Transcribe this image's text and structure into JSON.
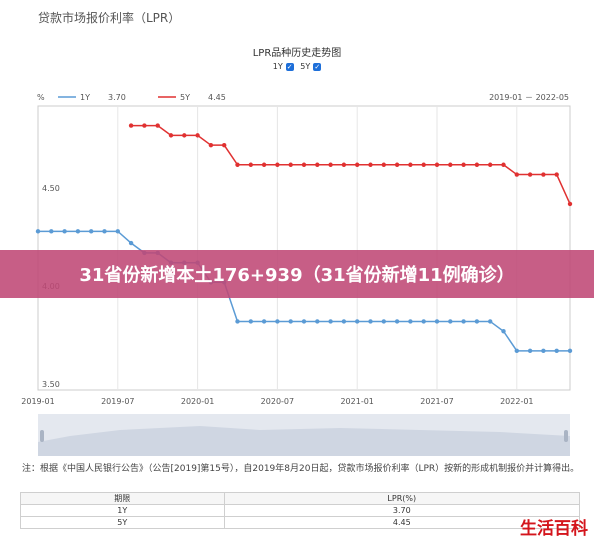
{
  "header": {
    "title": "贷款市场报价利率（LPR）"
  },
  "legend_toggles": [
    {
      "label": "1Y",
      "checked": "✓"
    },
    {
      "label": "5Y",
      "checked": "✓"
    }
  ],
  "banner": {
    "text": "31省份新增本土176+939（31省份新增11例确诊）"
  },
  "note": {
    "text": "注：根据《中国人民银行公告》（公告[2019]第15号），自2019年8月20日起，贷款市场报价利率（LPR）按新的形成机制报价并计算得出。"
  },
  "table": {
    "headers": [
      "期限",
      "LPR(%)"
    ],
    "rows": [
      {
        "term": "1Y",
        "rate": "3.70"
      },
      {
        "term": "5Y",
        "rate": "4.45"
      }
    ]
  },
  "brand": {
    "text": "生活百科"
  },
  "chart_data": {
    "type": "line",
    "title": "LPR品种历史走势图",
    "ylabel": "%",
    "range_label": "2019-01 － 2022-05",
    "x_ticks": [
      "2019-01",
      "2019-07",
      "2020-01",
      "2020-07",
      "2021-01",
      "2021-07",
      "2022-01"
    ],
    "y_ticks": [
      "3.50",
      "4.00",
      "4.50"
    ],
    "ylim": [
      3.5,
      4.95
    ],
    "grid": "vertical",
    "legend_position": "top-left",
    "x": [
      "2019-01",
      "2019-02",
      "2019-03",
      "2019-04",
      "2019-05",
      "2019-06",
      "2019-07",
      "2019-08",
      "2019-09",
      "2019-10",
      "2019-11",
      "2019-12",
      "2020-01",
      "2020-02",
      "2020-03",
      "2020-04",
      "2020-05",
      "2020-06",
      "2020-07",
      "2020-08",
      "2020-09",
      "2020-10",
      "2020-11",
      "2020-12",
      "2021-01",
      "2021-02",
      "2021-03",
      "2021-04",
      "2021-05",
      "2021-06",
      "2021-07",
      "2021-08",
      "2021-09",
      "2021-10",
      "2021-11",
      "2021-12",
      "2022-01",
      "2022-02",
      "2022-03",
      "2022-04",
      "2022-05"
    ],
    "series": [
      {
        "name": "1Y",
        "legend_value": "3.70",
        "color": "#5b9bd5",
        "values": [
          4.31,
          4.31,
          4.31,
          4.31,
          4.31,
          4.31,
          4.31,
          4.25,
          4.2,
          4.2,
          4.15,
          4.15,
          4.15,
          4.05,
          4.05,
          3.85,
          3.85,
          3.85,
          3.85,
          3.85,
          3.85,
          3.85,
          3.85,
          3.85,
          3.85,
          3.85,
          3.85,
          3.85,
          3.85,
          3.85,
          3.85,
          3.85,
          3.85,
          3.85,
          3.85,
          3.8,
          3.7,
          3.7,
          3.7,
          3.7,
          3.7
        ]
      },
      {
        "name": "5Y",
        "legend_value": "4.45",
        "color": "#e03131",
        "values": [
          null,
          null,
          null,
          null,
          null,
          null,
          null,
          4.85,
          4.85,
          4.85,
          4.8,
          4.8,
          4.8,
          4.75,
          4.75,
          4.65,
          4.65,
          4.65,
          4.65,
          4.65,
          4.65,
          4.65,
          4.65,
          4.65,
          4.65,
          4.65,
          4.65,
          4.65,
          4.65,
          4.65,
          4.65,
          4.65,
          4.65,
          4.65,
          4.65,
          4.65,
          4.6,
          4.6,
          4.6,
          4.6,
          4.45
        ]
      }
    ]
  }
}
